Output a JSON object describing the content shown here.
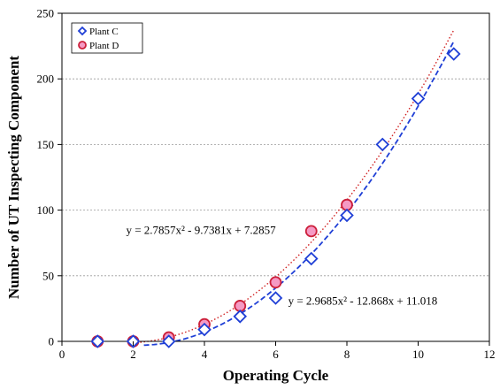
{
  "chart_data": {
    "type": "scatter",
    "xlabel": "Operating Cycle",
    "ylabel": "Number of UT Inspecting Component",
    "xlim": [
      0,
      12
    ],
    "ylim": [
      0,
      250
    ],
    "xticks": [
      "0",
      "2",
      "4",
      "6",
      "8",
      "10",
      "12"
    ],
    "yticks": [
      "0",
      "50",
      "100",
      "150",
      "200",
      "250"
    ],
    "grid": "horizontal",
    "legend_position": "top-left",
    "series": [
      {
        "name": "Plant C",
        "marker": "diamond",
        "color": "#1f3fd6",
        "x": [
          1,
          2,
          3,
          4,
          5,
          6,
          7,
          8,
          9,
          10,
          11
        ],
        "y": [
          0,
          0,
          0,
          9,
          19,
          33,
          63,
          96,
          150,
          185,
          219
        ],
        "trendline": {
          "a": 2.9685,
          "b": -12.868,
          "c": 11.018,
          "style": "dashed",
          "color": "#1f3fd6"
        },
        "equation": "y = 2.9685x² - 12.868x + 11.018"
      },
      {
        "name": "Plant D",
        "marker": "circle",
        "color": "#cc1f3a",
        "fill": "#f59ac4",
        "x": [
          1,
          2,
          3,
          4,
          5,
          6,
          7,
          8
        ],
        "y": [
          0,
          0,
          3,
          13,
          27,
          45,
          84,
          104
        ],
        "trendline": {
          "a": 2.7857,
          "b": -9.7381,
          "c": 7.2857,
          "style": "dotted",
          "color": "#d02020"
        },
        "equation": "y = 2.7857x² - 9.7381x + 7.2857"
      }
    ]
  }
}
